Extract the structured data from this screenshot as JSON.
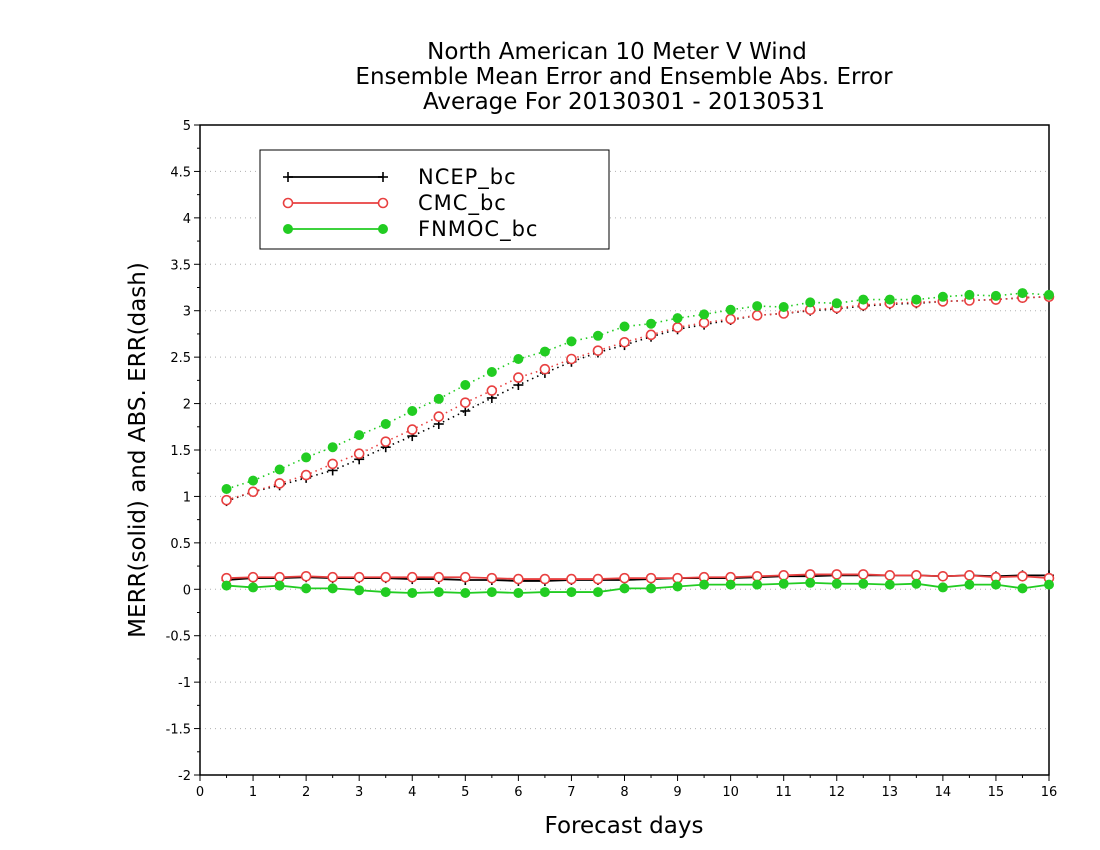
{
  "chart_data": {
    "type": "line",
    "title_lines": [
      "North American 10 Meter V Wind",
      "Ensemble Mean Error and Ensemble Abs. Error",
      "Average For 20130301 - 20130531"
    ],
    "xlabel": "Forecast days",
    "ylabel": "MERR(solid) and ABS. ERR(dash)",
    "xlim": [
      0,
      16
    ],
    "ylim": [
      -2,
      5
    ],
    "xticks": [
      "0",
      "1",
      "2",
      "3",
      "4",
      "5",
      "6",
      "7",
      "8",
      "9",
      "10",
      "11",
      "12",
      "13",
      "14",
      "15",
      "16"
    ],
    "yticks": [
      "-2",
      "-1.5",
      "-1",
      "-0.5",
      "0",
      "0.5",
      "1",
      "1.5",
      "2",
      "2.5",
      "3",
      "3.5",
      "4",
      "4.5",
      "5"
    ],
    "grid": true,
    "legend_position": "top-left",
    "x": [
      0.5,
      1,
      1.5,
      2,
      2.5,
      3,
      3.5,
      4,
      4.5,
      5,
      5.5,
      6,
      6.5,
      7,
      7.5,
      8,
      8.5,
      9,
      9.5,
      10,
      10.5,
      11,
      11.5,
      12,
      12.5,
      13,
      13.5,
      14,
      14.5,
      15,
      15.5,
      16
    ],
    "series": [
      {
        "name": "NCEP_bc",
        "color": "#000000",
        "marker": "plus",
        "merr": [
          0.1,
          0.12,
          0.12,
          0.13,
          0.12,
          0.12,
          0.12,
          0.11,
          0.11,
          0.1,
          0.1,
          0.09,
          0.09,
          0.1,
          0.1,
          0.1,
          0.11,
          0.12,
          0.12,
          0.12,
          0.13,
          0.14,
          0.14,
          0.15,
          0.15,
          0.15,
          0.15,
          0.14,
          0.15,
          0.14,
          0.15,
          0.15
        ],
        "abs_err": [
          0.95,
          1.05,
          1.12,
          1.2,
          1.28,
          1.4,
          1.53,
          1.65,
          1.78,
          1.92,
          2.06,
          2.2,
          2.33,
          2.45,
          2.55,
          2.63,
          2.72,
          2.8,
          2.85,
          2.9,
          2.95,
          2.97,
          3.0,
          3.02,
          3.05,
          3.07,
          3.08,
          3.1,
          3.11,
          3.12,
          3.14,
          3.15
        ]
      },
      {
        "name": "CMC_bc",
        "color": "#e84040",
        "marker": "open-circle",
        "merr": [
          0.12,
          0.13,
          0.13,
          0.14,
          0.13,
          0.13,
          0.13,
          0.13,
          0.13,
          0.13,
          0.12,
          0.11,
          0.11,
          0.11,
          0.11,
          0.12,
          0.12,
          0.12,
          0.13,
          0.13,
          0.14,
          0.15,
          0.16,
          0.16,
          0.16,
          0.15,
          0.15,
          0.14,
          0.15,
          0.13,
          0.14,
          0.12
        ],
        "abs_err": [
          0.96,
          1.05,
          1.14,
          1.23,
          1.35,
          1.46,
          1.59,
          1.72,
          1.86,
          2.01,
          2.14,
          2.28,
          2.37,
          2.48,
          2.57,
          2.66,
          2.74,
          2.82,
          2.87,
          2.91,
          2.95,
          2.97,
          3.01,
          3.03,
          3.06,
          3.08,
          3.09,
          3.1,
          3.11,
          3.12,
          3.14,
          3.15
        ]
      },
      {
        "name": "FNMOC_bc",
        "color": "#22cc22",
        "marker": "filled-circle",
        "merr": [
          0.04,
          0.02,
          0.04,
          0.01,
          0.01,
          -0.01,
          -0.03,
          -0.04,
          -0.03,
          -0.04,
          -0.03,
          -0.04,
          -0.03,
          -0.03,
          -0.03,
          0.01,
          0.01,
          0.03,
          0.05,
          0.05,
          0.05,
          0.06,
          0.07,
          0.06,
          0.06,
          0.05,
          0.06,
          0.02,
          0.05,
          0.05,
          0.01,
          0.05
        ],
        "abs_err": [
          1.08,
          1.17,
          1.29,
          1.42,
          1.53,
          1.66,
          1.78,
          1.92,
          2.05,
          2.2,
          2.34,
          2.48,
          2.56,
          2.67,
          2.73,
          2.83,
          2.86,
          2.92,
          2.96,
          3.01,
          3.05,
          3.04,
          3.09,
          3.08,
          3.12,
          3.12,
          3.12,
          3.15,
          3.17,
          3.16,
          3.19,
          3.17
        ]
      }
    ]
  }
}
